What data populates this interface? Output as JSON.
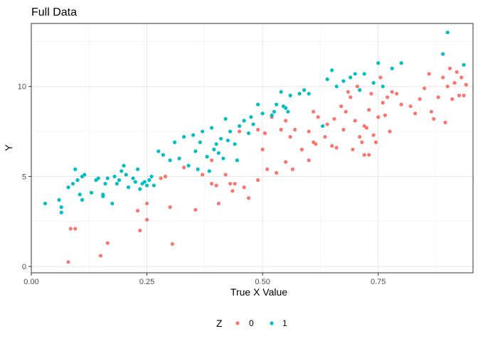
{
  "chart_data": {
    "type": "scatter",
    "title": "Full Data",
    "xlabel": "True X Value",
    "ylabel": "Y",
    "xlim": [
      0,
      0.955
    ],
    "ylim": [
      -0.35,
      13.5
    ],
    "xticks": [
      0.0,
      0.25,
      0.5,
      0.75
    ],
    "xtick_labels": [
      "0.00",
      "0.25",
      "0.50",
      "0.75"
    ],
    "yticks": [
      0,
      5,
      10
    ],
    "ytick_labels": [
      "0",
      "5",
      "10"
    ],
    "grid": true,
    "legend": {
      "title": "Z",
      "placement": "bottom"
    },
    "series": [
      {
        "name": "0",
        "color": "#F8766D",
        "points": [
          [
            0.08,
            0.25
          ],
          [
            0.085,
            2.1
          ],
          [
            0.095,
            2.1
          ],
          [
            0.15,
            0.6
          ],
          [
            0.165,
            1.3
          ],
          [
            0.23,
            3.1
          ],
          [
            0.235,
            2.0
          ],
          [
            0.25,
            2.6
          ],
          [
            0.25,
            3.5
          ],
          [
            0.28,
            4.9
          ],
          [
            0.29,
            5.0
          ],
          [
            0.3,
            3.3
          ],
          [
            0.305,
            1.25
          ],
          [
            0.33,
            5.5
          ],
          [
            0.355,
            3.15
          ],
          [
            0.37,
            5.1
          ],
          [
            0.39,
            4.6
          ],
          [
            0.39,
            5.9
          ],
          [
            0.4,
            4.5
          ],
          [
            0.405,
            3.5
          ],
          [
            0.42,
            5.1
          ],
          [
            0.43,
            4.6
          ],
          [
            0.435,
            4.2
          ],
          [
            0.44,
            4.6
          ],
          [
            0.45,
            7.5
          ],
          [
            0.46,
            4.4
          ],
          [
            0.47,
            3.8
          ],
          [
            0.49,
            7.6
          ],
          [
            0.49,
            4.8
          ],
          [
            0.5,
            6.5
          ],
          [
            0.505,
            7.4
          ],
          [
            0.51,
            5.4
          ],
          [
            0.52,
            8.3
          ],
          [
            0.53,
            5.2
          ],
          [
            0.54,
            7.6
          ],
          [
            0.55,
            5.8
          ],
          [
            0.55,
            8.1
          ],
          [
            0.56,
            7.2
          ],
          [
            0.565,
            5.4
          ],
          [
            0.57,
            7.6
          ],
          [
            0.585,
            6.5
          ],
          [
            0.6,
            7.5
          ],
          [
            0.6,
            5.9
          ],
          [
            0.61,
            6.9
          ],
          [
            0.61,
            8.6
          ],
          [
            0.615,
            6.8
          ],
          [
            0.62,
            8.3
          ],
          [
            0.635,
            7.2
          ],
          [
            0.64,
            7.9
          ],
          [
            0.65,
            6.7
          ],
          [
            0.655,
            8.2
          ],
          [
            0.66,
            6.6
          ],
          [
            0.67,
            8.9
          ],
          [
            0.675,
            7.6
          ],
          [
            0.68,
            8.6
          ],
          [
            0.685,
            9.7
          ],
          [
            0.69,
            9.4
          ],
          [
            0.695,
            6.5
          ],
          [
            0.7,
            8.1
          ],
          [
            0.705,
            10.0
          ],
          [
            0.71,
            7.2
          ],
          [
            0.715,
            6.9
          ],
          [
            0.72,
            7.8
          ],
          [
            0.72,
            6.2
          ],
          [
            0.725,
            7.7
          ],
          [
            0.73,
            8.7
          ],
          [
            0.73,
            6.2
          ],
          [
            0.735,
            9.6
          ],
          [
            0.74,
            7.3
          ],
          [
            0.745,
            6.9
          ],
          [
            0.75,
            8.3
          ],
          [
            0.755,
            10.5
          ],
          [
            0.76,
            9.1
          ],
          [
            0.765,
            8.4
          ],
          [
            0.77,
            9.4
          ],
          [
            0.775,
            7.5
          ],
          [
            0.78,
            9.7
          ],
          [
            0.79,
            9.6
          ],
          [
            0.8,
            9.0
          ],
          [
            0.82,
            8.9
          ],
          [
            0.83,
            8.5
          ],
          [
            0.84,
            9.3
          ],
          [
            0.85,
            9.9
          ],
          [
            0.86,
            10.7
          ],
          [
            0.865,
            8.6
          ],
          [
            0.87,
            8.2
          ],
          [
            0.88,
            9.4
          ],
          [
            0.89,
            10.5
          ],
          [
            0.895,
            8.0
          ],
          [
            0.9,
            10.0
          ],
          [
            0.905,
            11.0
          ],
          [
            0.91,
            9.3
          ],
          [
            0.915,
            10.2
          ],
          [
            0.92,
            10.8
          ],
          [
            0.925,
            9.5
          ],
          [
            0.93,
            10.5
          ],
          [
            0.935,
            9.5
          ],
          [
            0.94,
            10.1
          ]
        ]
      },
      {
        "name": "1",
        "color": "#00BFC4",
        "points": [
          [
            0.03,
            3.5
          ],
          [
            0.06,
            3.7
          ],
          [
            0.065,
            3.0
          ],
          [
            0.065,
            3.3
          ],
          [
            0.08,
            4.4
          ],
          [
            0.09,
            4.6
          ],
          [
            0.095,
            5.4
          ],
          [
            0.1,
            4.8
          ],
          [
            0.105,
            4.0
          ],
          [
            0.11,
            3.7
          ],
          [
            0.11,
            5.0
          ],
          [
            0.115,
            5.1
          ],
          [
            0.13,
            4.1
          ],
          [
            0.14,
            4.8
          ],
          [
            0.145,
            4.9
          ],
          [
            0.155,
            3.9
          ],
          [
            0.155,
            4.0
          ],
          [
            0.16,
            4.6
          ],
          [
            0.165,
            4.9
          ],
          [
            0.175,
            3.5
          ],
          [
            0.18,
            5.0
          ],
          [
            0.185,
            4.6
          ],
          [
            0.19,
            4.8
          ],
          [
            0.195,
            5.3
          ],
          [
            0.2,
            5.6
          ],
          [
            0.205,
            5.1
          ],
          [
            0.21,
            4.4
          ],
          [
            0.22,
            4.9
          ],
          [
            0.225,
            4.7
          ],
          [
            0.23,
            5.4
          ],
          [
            0.235,
            4.3
          ],
          [
            0.24,
            4.6
          ],
          [
            0.245,
            4.7
          ],
          [
            0.25,
            4.5
          ],
          [
            0.255,
            4.8
          ],
          [
            0.26,
            5.0
          ],
          [
            0.265,
            4.5
          ],
          [
            0.275,
            6.4
          ],
          [
            0.285,
            6.2
          ],
          [
            0.3,
            5.9
          ],
          [
            0.31,
            6.9
          ],
          [
            0.32,
            6.0
          ],
          [
            0.33,
            7.2
          ],
          [
            0.34,
            5.6
          ],
          [
            0.35,
            7.3
          ],
          [
            0.355,
            6.4
          ],
          [
            0.36,
            5.4
          ],
          [
            0.365,
            6.9
          ],
          [
            0.37,
            7.5
          ],
          [
            0.38,
            6.1
          ],
          [
            0.385,
            5.3
          ],
          [
            0.39,
            7.7
          ],
          [
            0.395,
            6.5
          ],
          [
            0.4,
            6.8
          ],
          [
            0.405,
            6.3
          ],
          [
            0.41,
            7.1
          ],
          [
            0.415,
            6.0
          ],
          [
            0.42,
            8.2
          ],
          [
            0.425,
            7.0
          ],
          [
            0.43,
            7.5
          ],
          [
            0.44,
            6.8
          ],
          [
            0.445,
            5.9
          ],
          [
            0.45,
            7.8
          ],
          [
            0.46,
            8.1
          ],
          [
            0.47,
            7.4
          ],
          [
            0.475,
            8.3
          ],
          [
            0.48,
            7.9
          ],
          [
            0.49,
            9.0
          ],
          [
            0.5,
            8.5
          ],
          [
            0.52,
            8.4
          ],
          [
            0.525,
            8.6
          ],
          [
            0.53,
            9.0
          ],
          [
            0.54,
            9.7
          ],
          [
            0.545,
            8.9
          ],
          [
            0.55,
            8.8
          ],
          [
            0.555,
            8.6
          ],
          [
            0.56,
            9.5
          ],
          [
            0.58,
            9.6
          ],
          [
            0.59,
            9.8
          ],
          [
            0.6,
            9.6
          ],
          [
            0.63,
            7.8
          ],
          [
            0.64,
            10.4
          ],
          [
            0.65,
            10.9
          ],
          [
            0.66,
            10.0
          ],
          [
            0.675,
            10.3
          ],
          [
            0.69,
            10.5
          ],
          [
            0.7,
            10.7
          ],
          [
            0.71,
            9.8
          ],
          [
            0.72,
            10.7
          ],
          [
            0.74,
            10.2
          ],
          [
            0.75,
            11.3
          ],
          [
            0.76,
            10.0
          ],
          [
            0.78,
            11.0
          ],
          [
            0.8,
            11.3
          ],
          [
            0.89,
            11.8
          ],
          [
            0.9,
            13.0
          ],
          [
            0.935,
            11.2
          ]
        ]
      }
    ]
  }
}
